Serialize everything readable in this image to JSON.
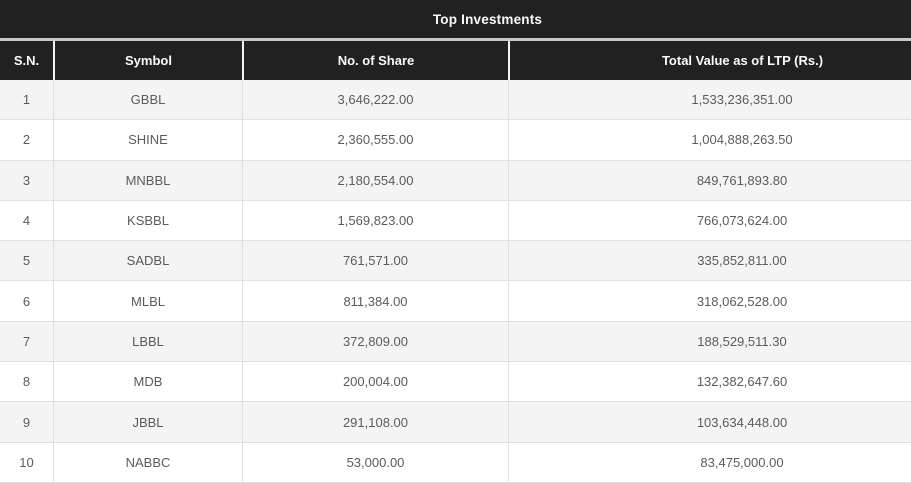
{
  "title": "Top Investments",
  "table": {
    "columns": [
      "S.N.",
      "Symbol",
      "No. of Share",
      "Total Value as of LTP (Rs.)"
    ],
    "rows": [
      {
        "sn": "1",
        "symbol": "GBBL",
        "shares": "3,646,222.00",
        "total_value": "1,533,236,351.00"
      },
      {
        "sn": "2",
        "symbol": "SHINE",
        "shares": "2,360,555.00",
        "total_value": "1,004,888,263.50"
      },
      {
        "sn": "3",
        "symbol": "MNBBL",
        "shares": "2,180,554.00",
        "total_value": "849,761,893.80"
      },
      {
        "sn": "4",
        "symbol": "KSBBL",
        "shares": "1,569,823.00",
        "total_value": "766,073,624.00"
      },
      {
        "sn": "5",
        "symbol": "SADBL",
        "shares": "761,571.00",
        "total_value": "335,852,811.00"
      },
      {
        "sn": "6",
        "symbol": "MLBL",
        "shares": "811,384.00",
        "total_value": "318,062,528.00"
      },
      {
        "sn": "7",
        "symbol": "LBBL",
        "shares": "372,809.00",
        "total_value": "188,529,511.30"
      },
      {
        "sn": "8",
        "symbol": "MDB",
        "shares": "200,004.00",
        "total_value": "132,382,647.60"
      },
      {
        "sn": "9",
        "symbol": "JBBL",
        "shares": "291,108.00",
        "total_value": "103,634,448.00"
      },
      {
        "sn": "10",
        "symbol": "NABBC",
        "shares": "53,000.00",
        "total_value": "83,475,000.00"
      }
    ]
  },
  "colors": {
    "header_bg": "#212121",
    "header_text": "#fafafa",
    "stripe_bg": "#f4f4f4",
    "row_bg": "#ffffff",
    "body_text": "#5b5b5b",
    "border": "#e0e0e0"
  }
}
